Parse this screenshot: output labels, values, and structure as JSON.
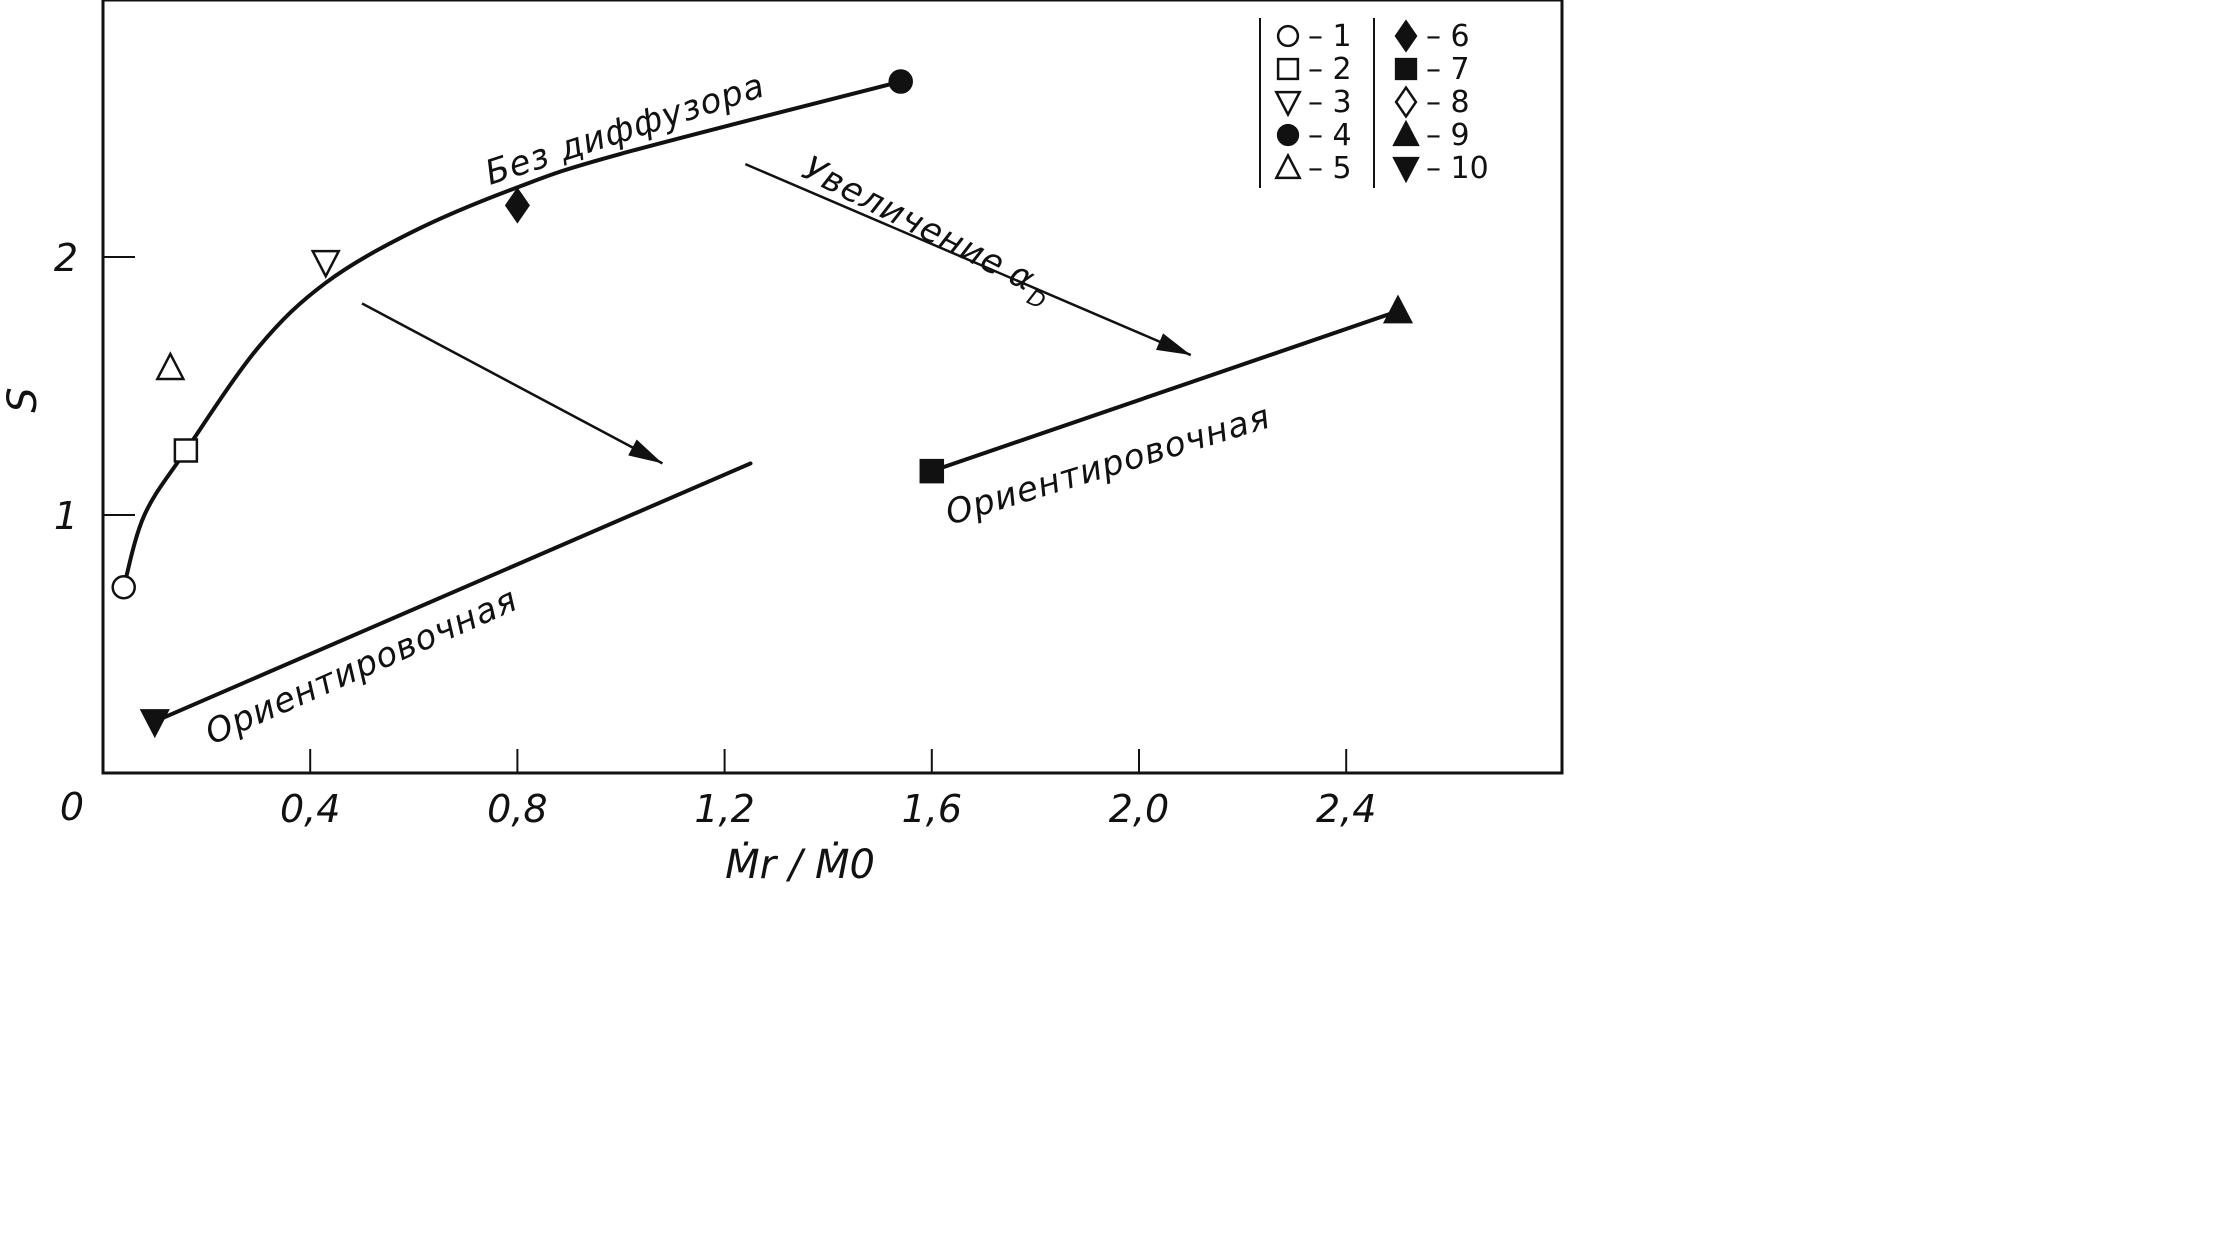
{
  "chart_data": {
    "type": "scatter",
    "xlabel": "Ṁr / Ṁ0",
    "ylabel": "S",
    "xlim": [
      0,
      2.8
    ],
    "ylim": [
      0,
      2.9
    ],
    "x_origin_label": "0",
    "x_ticks": [
      {
        "value": 0.4,
        "label": "0,4"
      },
      {
        "value": 0.8,
        "label": "0,8"
      },
      {
        "value": 1.2,
        "label": "1,2"
      },
      {
        "value": 1.6,
        "label": "1,6"
      },
      {
        "value": 2.0,
        "label": "2,0"
      },
      {
        "value": 2.4,
        "label": "2,4"
      }
    ],
    "y_ticks": [
      {
        "value": 1,
        "label": "1"
      },
      {
        "value": 2,
        "label": "2"
      }
    ],
    "points": [
      {
        "id": "1",
        "marker": "open-circle",
        "x": 0.04,
        "y": 0.72
      },
      {
        "id": "2",
        "marker": "open-square",
        "x": 0.16,
        "y": 1.25
      },
      {
        "id": "3",
        "marker": "open-triangle-down",
        "x": 0.43,
        "y": 1.98
      },
      {
        "id": "4",
        "marker": "filled-circle",
        "x": 1.54,
        "y": 2.68
      },
      {
        "id": "5",
        "marker": "open-triangle-up",
        "x": 0.13,
        "y": 1.57
      },
      {
        "id": "6",
        "marker": "filled-diamond",
        "x": 0.8,
        "y": 2.2
      },
      {
        "id": "7",
        "marker": "filled-square",
        "x": 1.6,
        "y": 1.17
      },
      {
        "id": "9",
        "marker": "filled-triangle-up",
        "x": 2.5,
        "y": 1.79
      },
      {
        "id": "10",
        "marker": "filled-triangle-down",
        "x": 0.1,
        "y": 0.2
      }
    ],
    "curves": [
      {
        "label": "Без диффузора",
        "points": [
          [
            0.04,
            0.72
          ],
          [
            0.08,
            1.0
          ],
          [
            0.16,
            1.25
          ],
          [
            0.3,
            1.65
          ],
          [
            0.43,
            1.9
          ],
          [
            0.6,
            2.1
          ],
          [
            0.8,
            2.27
          ],
          [
            1.0,
            2.4
          ],
          [
            1.54,
            2.68
          ]
        ]
      },
      {
        "label": "Ориентировочная",
        "points": [
          [
            0.1,
            0.2
          ],
          [
            1.25,
            1.2
          ]
        ]
      },
      {
        "label": "Ориентировочная",
        "points": [
          [
            1.6,
            1.17
          ],
          [
            2.5,
            1.79
          ]
        ]
      }
    ],
    "arrows": [
      {
        "from": [
          0.5,
          1.82
        ],
        "to": [
          1.08,
          1.2
        ]
      },
      {
        "from": [
          1.24,
          2.36
        ],
        "to": [
          2.1,
          1.62
        ]
      }
    ],
    "annotations": [
      {
        "text": "Увеличение",
        "symbol": "α",
        "subscript": "D"
      }
    ],
    "legend": {
      "placement": "top-right",
      "entries": [
        {
          "marker": "open-circle",
          "label": "1"
        },
        {
          "marker": "open-square",
          "label": "2"
        },
        {
          "marker": "open-triangle-down",
          "label": "3"
        },
        {
          "marker": "filled-circle",
          "label": "4"
        },
        {
          "marker": "open-triangle-up",
          "label": "5"
        },
        {
          "marker": "filled-diamond",
          "label": "6"
        },
        {
          "marker": "filled-square",
          "label": "7"
        },
        {
          "marker": "open-diamond",
          "label": "8"
        },
        {
          "marker": "filled-triangle-up",
          "label": "9"
        },
        {
          "marker": "filled-triangle-down",
          "label": "10"
        }
      ]
    },
    "grid": false
  }
}
